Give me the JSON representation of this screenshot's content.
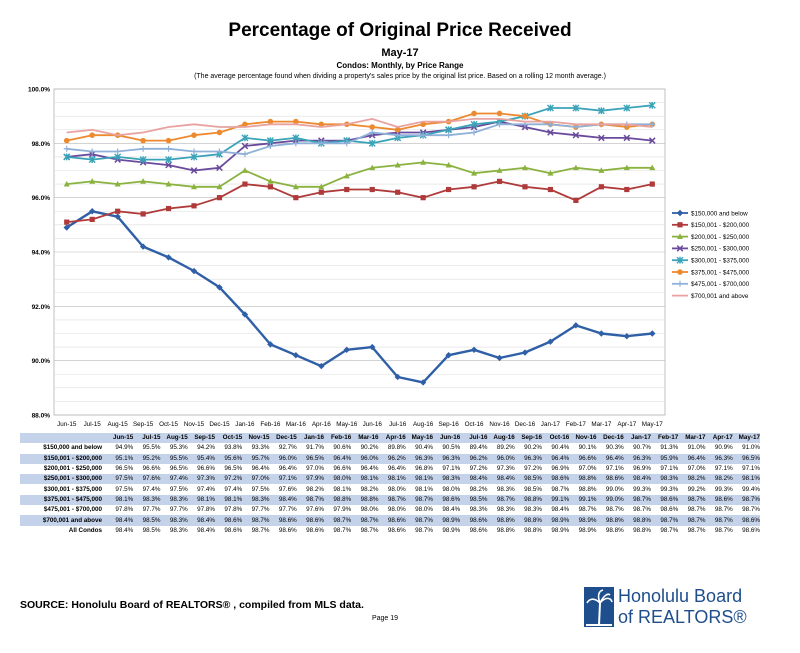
{
  "header": {
    "title": "Percentage of Original Price Received",
    "subtitle": "May-17",
    "subtitle2": "Condos: Monthly, by Price Range",
    "note": "(The average percentage found when dividing a property's sales price by the original list price. Based on a rolling 12 month average.)"
  },
  "chart_data": {
    "type": "line",
    "title": "Percentage of Original Price Received",
    "ylim": [
      88.0,
      100.0
    ],
    "yticks": [
      "88.0%",
      "90.0%",
      "92.0%",
      "94.0%",
      "96.0%",
      "98.0%",
      "100.0%"
    ],
    "grid": true,
    "legend_position": "right",
    "x": [
      "Jun-15",
      "Jul-15",
      "Aug-15",
      "Sep-15",
      "Oct-15",
      "Nov-15",
      "Dec-15",
      "Jan-16",
      "Feb-16",
      "Mar-16",
      "Apr-16",
      "May-16",
      "Jun-16",
      "Jul-16",
      "Aug-16",
      "Sep-16",
      "Oct-16",
      "Nov-16",
      "Dec-16",
      "Jan-17",
      "Feb-17",
      "Mar-17",
      "Apr-17",
      "May-17"
    ],
    "series": [
      {
        "name": "$150,000 and below",
        "color": "#2f5fa6",
        "marker": "diamond",
        "values": [
          94.9,
          95.5,
          95.3,
          94.2,
          93.8,
          93.3,
          92.7,
          91.7,
          90.6,
          90.2,
          89.8,
          90.4,
          90.5,
          89.4,
          89.2,
          90.2,
          90.4,
          90.1,
          90.3,
          90.7,
          91.3,
          91.0,
          90.9,
          91.0
        ]
      },
      {
        "name": "$150,001 - $200,000",
        "color": "#b03a3a",
        "marker": "square",
        "values": [
          95.1,
          95.2,
          95.5,
          95.4,
          95.6,
          95.7,
          96.0,
          96.5,
          96.4,
          96.0,
          96.2,
          96.3,
          96.3,
          96.2,
          96.0,
          96.3,
          96.4,
          96.6,
          96.4,
          96.3,
          95.9,
          96.4,
          96.3,
          96.5
        ]
      },
      {
        "name": "$200,001 - $250,000",
        "color": "#8ab23f",
        "marker": "triangle",
        "values": [
          96.5,
          96.6,
          96.5,
          96.6,
          96.5,
          96.4,
          96.4,
          97.0,
          96.6,
          96.4,
          96.4,
          96.8,
          97.1,
          97.2,
          97.3,
          97.2,
          96.9,
          97.0,
          97.1,
          96.9,
          97.1,
          97.0,
          97.1,
          97.1
        ]
      },
      {
        "name": "$250,001 - $300,000",
        "color": "#6a4a9c",
        "marker": "x",
        "values": [
          97.5,
          97.6,
          97.4,
          97.3,
          97.2,
          97.0,
          97.1,
          97.9,
          98.0,
          98.1,
          98.1,
          98.1,
          98.3,
          98.4,
          98.4,
          98.5,
          98.6,
          98.8,
          98.6,
          98.4,
          98.3,
          98.2,
          98.2,
          98.1
        ]
      },
      {
        "name": "$300,001 - $375,000",
        "color": "#3aa3b8",
        "marker": "star",
        "values": [
          97.5,
          97.4,
          97.5,
          97.4,
          97.4,
          97.5,
          97.6,
          98.2,
          98.1,
          98.2,
          98.0,
          98.1,
          98.0,
          98.2,
          98.3,
          98.5,
          98.7,
          98.8,
          99.0,
          99.3,
          99.3,
          99.2,
          99.3,
          99.4
        ]
      },
      {
        "name": "$375,001 - $475,000",
        "color": "#ed8a2f",
        "marker": "circle",
        "values": [
          98.1,
          98.3,
          98.3,
          98.1,
          98.1,
          98.3,
          98.4,
          98.7,
          98.8,
          98.8,
          98.7,
          98.7,
          98.6,
          98.5,
          98.7,
          98.8,
          99.1,
          99.1,
          99.0,
          98.7,
          98.6,
          98.7,
          98.6,
          98.7
        ]
      },
      {
        "name": "$475,001 - $700,000",
        "color": "#8fb0d8",
        "marker": "plus",
        "values": [
          97.8,
          97.7,
          97.7,
          97.8,
          97.8,
          97.7,
          97.7,
          97.6,
          97.9,
          98.0,
          98.0,
          98.0,
          98.4,
          98.3,
          98.3,
          98.3,
          98.4,
          98.7,
          98.7,
          98.7,
          98.6,
          98.7,
          98.7,
          98.7
        ]
      },
      {
        "name": "$700,001 and above",
        "color": "#e8a3a0",
        "marker": "none",
        "values": [
          98.4,
          98.5,
          98.3,
          98.4,
          98.6,
          98.7,
          98.6,
          98.6,
          98.7,
          98.7,
          98.6,
          98.7,
          98.9,
          98.6,
          98.8,
          98.8,
          98.9,
          98.9,
          98.8,
          98.8,
          98.7,
          98.7,
          98.7,
          98.6
        ]
      }
    ]
  },
  "table": {
    "header": [
      "",
      "Jun-15",
      "Jul-15",
      "Aug-15",
      "Sep-15",
      "Oct-15",
      "Nov-15",
      "Dec-15",
      "Jan-16",
      "Feb-16",
      "Mar-16",
      "Apr-16",
      "May-16",
      "Jun-16",
      "Jul-16",
      "Aug-16",
      "Sep-16",
      "Oct-16",
      "Nov-16",
      "Dec-16",
      "Jan-17",
      "Feb-17",
      "Mar-17",
      "Apr-17",
      "May-17"
    ],
    "rows": [
      {
        "label": "$150,000 and below",
        "blue": false,
        "cells": [
          "94.9%",
          "95.5%",
          "95.3%",
          "94.2%",
          "93.8%",
          "93.3%",
          "92.7%",
          "91.7%",
          "90.6%",
          "90.2%",
          "89.8%",
          "90.4%",
          "90.5%",
          "89.4%",
          "89.2%",
          "90.2%",
          "90.4%",
          "90.1%",
          "90.3%",
          "90.7%",
          "91.3%",
          "91.0%",
          "90.9%",
          "91.0%"
        ]
      },
      {
        "label": "$150,001 - $200,000",
        "blue": true,
        "cells": [
          "95.1%",
          "95.2%",
          "95.5%",
          "95.4%",
          "95.6%",
          "95.7%",
          "96.0%",
          "96.5%",
          "96.4%",
          "96.0%",
          "96.2%",
          "96.3%",
          "96.3%",
          "96.2%",
          "96.0%",
          "96.3%",
          "96.4%",
          "96.6%",
          "96.4%",
          "96.3%",
          "95.9%",
          "96.4%",
          "96.3%",
          "96.5%"
        ]
      },
      {
        "label": "$200,001 - $250,000",
        "blue": false,
        "cells": [
          "96.5%",
          "96.6%",
          "96.5%",
          "96.6%",
          "96.5%",
          "96.4%",
          "96.4%",
          "97.0%",
          "96.6%",
          "96.4%",
          "96.4%",
          "96.8%",
          "97.1%",
          "97.2%",
          "97.3%",
          "97.2%",
          "96.9%",
          "97.0%",
          "97.1%",
          "96.9%",
          "97.1%",
          "97.0%",
          "97.1%",
          "97.1%"
        ]
      },
      {
        "label": "$250,001 - $300,000",
        "blue": true,
        "cells": [
          "97.5%",
          "97.6%",
          "97.4%",
          "97.3%",
          "97.2%",
          "97.0%",
          "97.1%",
          "97.9%",
          "98.0%",
          "98.1%",
          "98.1%",
          "98.1%",
          "98.3%",
          "98.4%",
          "98.4%",
          "98.5%",
          "98.6%",
          "98.8%",
          "98.6%",
          "98.4%",
          "98.3%",
          "98.2%",
          "98.2%",
          "98.1%"
        ]
      },
      {
        "label": "$300,001 - $375,000",
        "blue": false,
        "cells": [
          "97.5%",
          "97.4%",
          "97.5%",
          "97.4%",
          "97.4%",
          "97.5%",
          "97.6%",
          "98.2%",
          "98.1%",
          "98.2%",
          "98.0%",
          "98.1%",
          "98.0%",
          "98.2%",
          "98.3%",
          "98.5%",
          "98.7%",
          "98.8%",
          "99.0%",
          "99.3%",
          "99.3%",
          "99.2%",
          "99.3%",
          "99.4%"
        ]
      },
      {
        "label": "$375,001 - $475,000",
        "blue": true,
        "cells": [
          "98.1%",
          "98.3%",
          "98.3%",
          "98.1%",
          "98.1%",
          "98.3%",
          "98.4%",
          "98.7%",
          "98.8%",
          "98.8%",
          "98.7%",
          "98.7%",
          "98.6%",
          "98.5%",
          "98.7%",
          "98.8%",
          "99.1%",
          "99.1%",
          "99.0%",
          "98.7%",
          "98.6%",
          "98.7%",
          "98.6%",
          "98.7%"
        ]
      },
      {
        "label": "$475,001 - $700,000",
        "blue": false,
        "cells": [
          "97.8%",
          "97.7%",
          "97.7%",
          "97.8%",
          "97.8%",
          "97.7%",
          "97.7%",
          "97.6%",
          "97.9%",
          "98.0%",
          "98.0%",
          "98.0%",
          "98.4%",
          "98.3%",
          "98.3%",
          "98.3%",
          "98.4%",
          "98.7%",
          "98.7%",
          "98.7%",
          "98.6%",
          "98.7%",
          "98.7%",
          "98.7%"
        ]
      },
      {
        "label": "$700,001 and above",
        "blue": true,
        "cells": [
          "98.4%",
          "98.5%",
          "98.3%",
          "98.4%",
          "98.6%",
          "98.7%",
          "98.6%",
          "98.6%",
          "98.7%",
          "98.7%",
          "98.6%",
          "98.7%",
          "98.9%",
          "98.6%",
          "98.8%",
          "98.8%",
          "98.9%",
          "98.9%",
          "98.8%",
          "98.8%",
          "98.7%",
          "98.7%",
          "98.7%",
          "98.6%"
        ]
      },
      {
        "label": "All Condos",
        "blue": false,
        "cells": [
          "98.4%",
          "98.5%",
          "98.3%",
          "98.4%",
          "98.6%",
          "98.7%",
          "98.6%",
          "98.6%",
          "98.7%",
          "98.7%",
          "98.6%",
          "98.7%",
          "98.9%",
          "98.6%",
          "98.8%",
          "98.8%",
          "98.9%",
          "98.9%",
          "98.8%",
          "98.8%",
          "98.7%",
          "98.7%",
          "98.7%",
          "98.6%"
        ]
      }
    ]
  },
  "footer": {
    "source": "SOURCE:  Honolulu Board of REALTORS® , compiled from MLS data.",
    "page": "Page 19",
    "logo_line1": "Honolulu Board",
    "logo_line2": "of REALTORS®"
  }
}
